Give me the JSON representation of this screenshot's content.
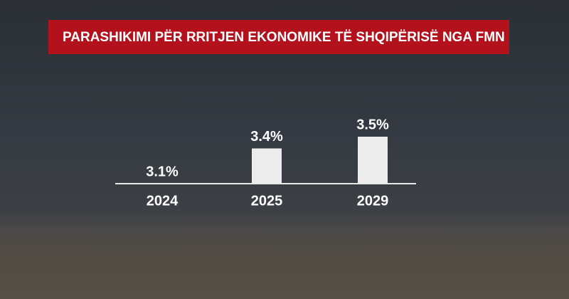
{
  "chart_data": {
    "type": "bar",
    "title": "PARASHIKIMI PËR RRITJEN EKONOMIKE TË SHQIPËRISË NGA FMN",
    "categories": [
      "2024",
      "2025",
      "2029"
    ],
    "values": [
      3.1,
      3.4,
      3.5
    ],
    "value_labels": [
      "3.1%",
      "3.4%",
      "3.5%"
    ],
    "color": "#ececec",
    "ylim": [
      3.1,
      3.5
    ]
  }
}
